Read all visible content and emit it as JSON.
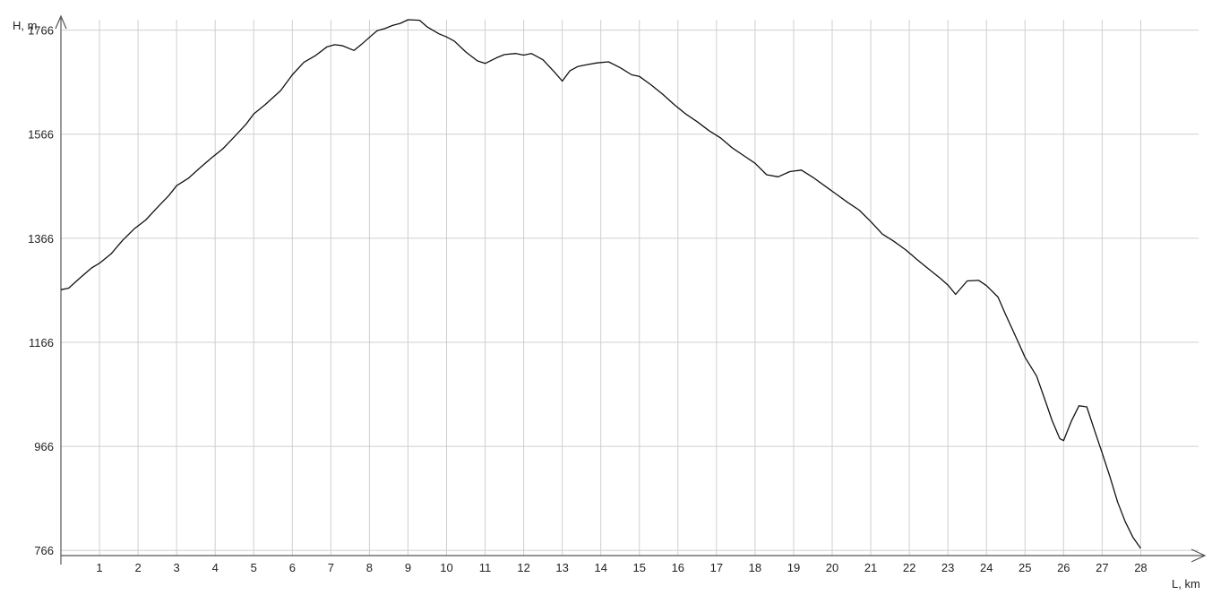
{
  "chart_data": {
    "type": "line",
    "title": "",
    "xlabel": "L, km",
    "ylabel": "H, m",
    "xlim": [
      0,
      29.5
    ],
    "ylim": [
      756,
      1786
    ],
    "x_ticks": [
      1,
      2,
      3,
      4,
      5,
      6,
      7,
      8,
      9,
      10,
      11,
      12,
      13,
      14,
      15,
      16,
      17,
      18,
      19,
      20,
      21,
      22,
      23,
      24,
      25,
      26,
      27,
      28
    ],
    "x_tick_labels": [
      "1",
      "2",
      "3",
      "4",
      "5",
      "6",
      "7",
      "8",
      "9",
      "10",
      "11",
      "12",
      "13",
      "14",
      "15",
      "16",
      "17",
      "18",
      "19",
      "20",
      "21",
      "22",
      "23",
      "24",
      "25",
      "26",
      "27",
      "28"
    ],
    "y_ticks": [
      766,
      966,
      1166,
      1366,
      1566,
      1766
    ],
    "y_tick_labels": [
      "766",
      "966",
      "1166",
      "1366",
      "1566",
      "1766"
    ],
    "grid": true,
    "legend": "none",
    "line_color": "#111111",
    "series": [
      {
        "x": [
          0,
          0.2,
          0.5,
          0.8,
          1,
          1.3,
          1.6,
          1.9,
          2.2,
          2.5,
          2.8,
          3,
          3.3,
          3.6,
          3.9,
          4.2,
          4.5,
          4.8,
          5,
          5.3,
          5.7,
          6,
          6.3,
          6.6,
          6.9,
          7.1,
          7.3,
          7.6,
          7.8,
          8,
          8.2,
          8.4,
          8.6,
          8.8,
          9,
          9.3,
          9.5,
          9.8,
          10,
          10.2,
          10.5,
          10.8,
          11,
          11.3,
          11.5,
          11.8,
          12,
          12.2,
          12.5,
          12.8,
          13,
          13.2,
          13.4,
          13.6,
          13.9,
          14.2,
          14.5,
          14.8,
          15,
          15.3,
          15.6,
          15.9,
          16.2,
          16.5,
          16.8,
          17.1,
          17.4,
          17.7,
          18,
          18.3,
          18.6,
          18.9,
          19.2,
          19.5,
          19.8,
          20.1,
          20.4,
          20.7,
          21,
          21.3,
          21.6,
          21.9,
          22.2,
          22.5,
          22.8,
          23,
          23.2,
          23.5,
          23.8,
          24,
          24.3,
          24.5,
          24.8,
          25,
          25.3,
          25.5,
          25.7,
          25.9,
          26,
          26.2,
          26.4,
          26.6,
          26.8,
          27,
          27.2,
          27.4,
          27.6,
          27.8,
          28
        ],
        "y": [
          1267,
          1270,
          1290,
          1309,
          1318,
          1336,
          1362,
          1384,
          1401,
          1425,
          1448,
          1467,
          1481,
          1501,
          1520,
          1538,
          1561,
          1585,
          1605,
          1623,
          1650,
          1680,
          1704,
          1717,
          1734,
          1738,
          1736,
          1727,
          1739,
          1752,
          1765,
          1769,
          1775,
          1779,
          1786,
          1785,
          1772,
          1759,
          1753,
          1745,
          1724,
          1707,
          1702,
          1713,
          1719,
          1721,
          1718,
          1721,
          1709,
          1685,
          1668,
          1688,
          1696,
          1699,
          1703,
          1705,
          1694,
          1680,
          1677,
          1661,
          1643,
          1623,
          1605,
          1590,
          1573,
          1559,
          1540,
          1525,
          1510,
          1488,
          1484,
          1494,
          1497,
          1483,
          1467,
          1451,
          1435,
          1420,
          1398,
          1374,
          1360,
          1344,
          1325,
          1307,
          1289,
          1276,
          1258,
          1284,
          1285,
          1275,
          1253,
          1219,
          1170,
          1137,
          1101,
          1059,
          1016,
          981,
          977,
          1014,
          1044,
          1042,
          997,
          953,
          908,
          859,
          821,
          791,
          770
        ]
      }
    ]
  }
}
